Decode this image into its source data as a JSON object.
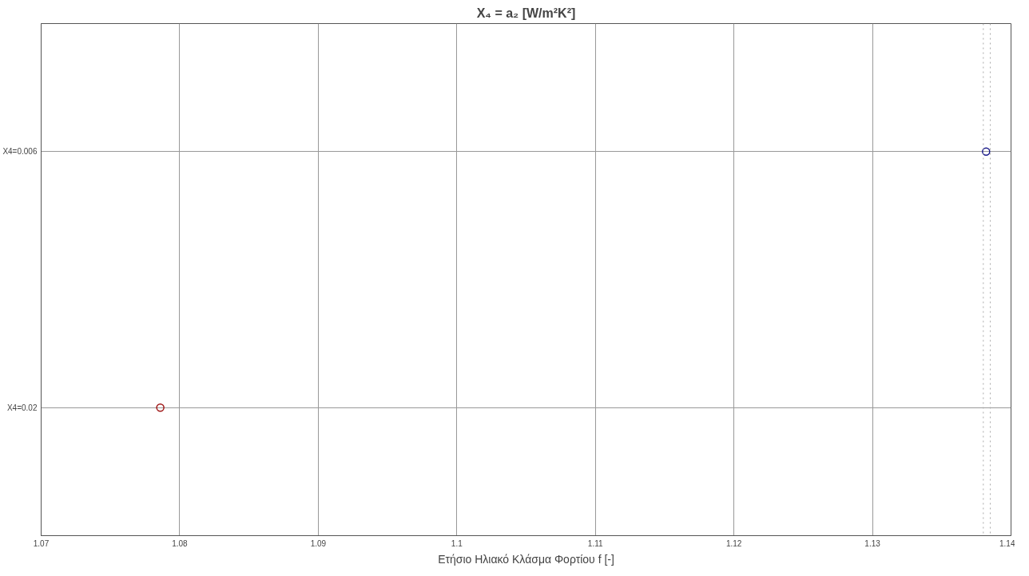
{
  "chart_data": {
    "type": "scatter",
    "title": "X₄ = a₂ [W/m²K²]",
    "xlabel": "Ετήσιο Ηλιακό Κλάσμα Φορτίου f [-]",
    "orientation": "horizontal",
    "categories": [
      "X4=0.006",
      "X4=0.02"
    ],
    "values": [
      1.1382,
      1.0786
    ],
    "colors": [
      "#1a1a8c",
      "#a01818"
    ],
    "marker": "circle",
    "xlim": [
      1.07,
      1.14
    ],
    "xticks": [
      1.07,
      1.08,
      1.09,
      1.1,
      1.11,
      1.12,
      1.13,
      1.14
    ],
    "ref_lines": [
      {
        "axis": "x",
        "value": 1.138,
        "label": null,
        "color": "#aaaaaa",
        "line_style": "dotted"
      },
      {
        "axis": "x",
        "value": 1.1385,
        "label": null,
        "color": "#aaaaaa",
        "line_style": "dotted"
      }
    ],
    "grid": true
  }
}
